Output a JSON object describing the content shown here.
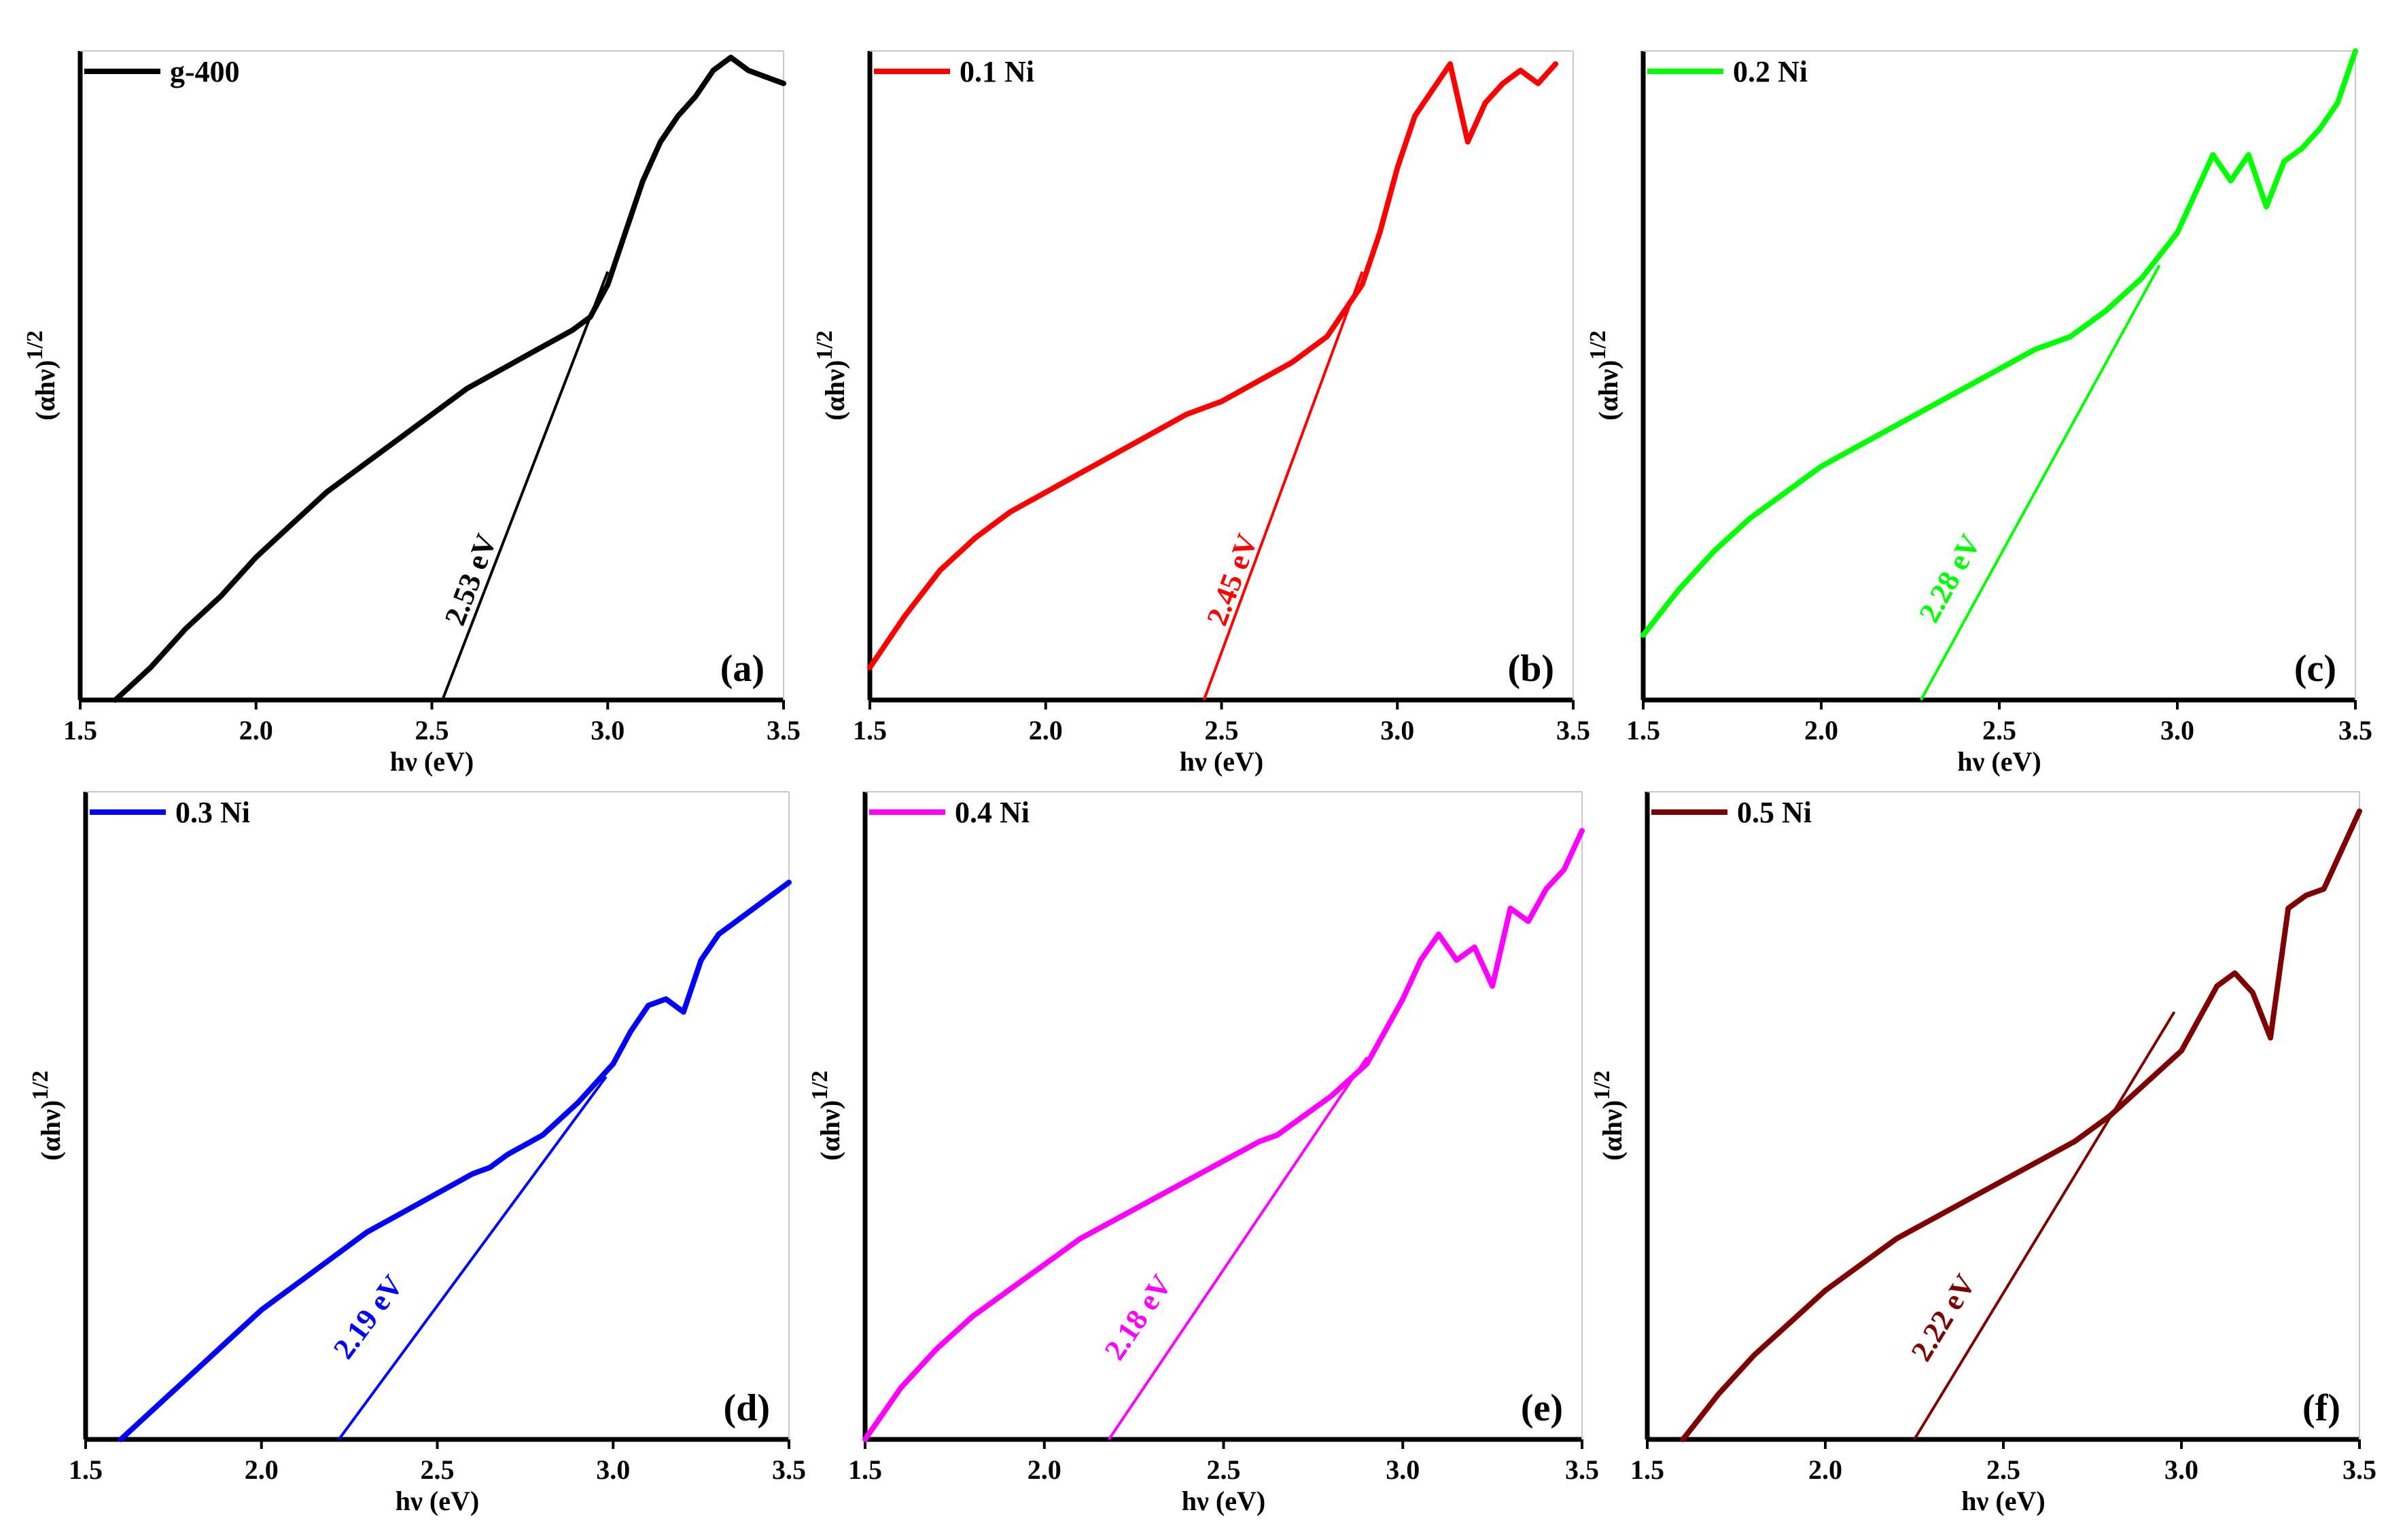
{
  "figure_title": "",
  "chart_data": [
    {
      "type": "line",
      "panel_label": "(a)",
      "legend": "g-400",
      "color": "#000000",
      "xlabel": "hν (eV)",
      "ylabel": "(αhν)",
      "ylabel_sup": "1/2",
      "xlim": [
        1.5,
        3.5
      ],
      "ylim": [
        0,
        1
      ],
      "xticks": [
        "1.5",
        "2.0",
        "2.5",
        "3.0",
        "3.5"
      ],
      "band_gap_eV": 2.53,
      "band_gap_label": "2.53 eV",
      "series": [
        {
          "name": "g-400",
          "x": [
            1.6,
            1.7,
            1.8,
            1.9,
            2.0,
            2.1,
            2.2,
            2.3,
            2.4,
            2.5,
            2.6,
            2.7,
            2.8,
            2.9,
            2.95,
            3.0,
            3.05,
            3.1,
            3.15,
            3.2,
            3.25,
            3.3,
            3.35,
            3.4,
            3.45,
            3.5
          ],
          "y": [
            0.0,
            0.05,
            0.11,
            0.16,
            0.22,
            0.27,
            0.32,
            0.36,
            0.4,
            0.44,
            0.48,
            0.51,
            0.54,
            0.57,
            0.59,
            0.64,
            0.72,
            0.8,
            0.86,
            0.9,
            0.93,
            0.97,
            0.99,
            0.97,
            0.96,
            0.95
          ]
        }
      ],
      "tangent": {
        "x": [
          2.53,
          3.0
        ],
        "y": [
          0.0,
          0.66
        ]
      }
    },
    {
      "type": "line",
      "panel_label": "(b)",
      "legend": "0.1 Ni",
      "color": "#ff0000",
      "xlabel": "hν (eV)",
      "ylabel": "(αhν)",
      "ylabel_sup": "1/2",
      "xlim": [
        1.5,
        3.5
      ],
      "ylim": [
        0,
        1
      ],
      "xticks": [
        "1.5",
        "2.0",
        "2.5",
        "3.0",
        "3.5"
      ],
      "band_gap_eV": 2.45,
      "band_gap_label": "2.45 eV",
      "series": [
        {
          "name": "0.1 Ni",
          "x": [
            1.5,
            1.6,
            1.7,
            1.8,
            1.9,
            2.0,
            2.1,
            2.2,
            2.3,
            2.4,
            2.5,
            2.6,
            2.7,
            2.8,
            2.85,
            2.9,
            2.95,
            3.0,
            3.05,
            3.1,
            3.15,
            3.2,
            3.25,
            3.3,
            3.35,
            3.4,
            3.45
          ],
          "y": [
            0.05,
            0.13,
            0.2,
            0.25,
            0.29,
            0.32,
            0.35,
            0.38,
            0.41,
            0.44,
            0.46,
            0.49,
            0.52,
            0.56,
            0.6,
            0.64,
            0.72,
            0.82,
            0.9,
            0.94,
            0.98,
            0.86,
            0.92,
            0.95,
            0.97,
            0.95,
            0.98
          ]
        }
      ],
      "tangent": {
        "x": [
          2.45,
          2.9
        ],
        "y": [
          0.0,
          0.66
        ]
      }
    },
    {
      "type": "line",
      "panel_label": "(c)",
      "legend": "0.2 Ni",
      "color": "#00ff00",
      "xlabel": "hν (eV)",
      "ylabel": "(αhν)",
      "ylabel_sup": "1/2",
      "xlim": [
        1.5,
        3.5
      ],
      "ylim": [
        0,
        1
      ],
      "xticks": [
        "1.5",
        "2.0",
        "2.5",
        "3.0",
        "3.5"
      ],
      "band_gap_eV": 2.28,
      "band_gap_label": "2.28 eV",
      "series": [
        {
          "name": "0.2 Ni",
          "x": [
            1.5,
            1.6,
            1.7,
            1.8,
            1.9,
            2.0,
            2.1,
            2.2,
            2.3,
            2.4,
            2.5,
            2.6,
            2.7,
            2.8,
            2.9,
            3.0,
            3.05,
            3.1,
            3.15,
            3.2,
            3.25,
            3.3,
            3.35,
            3.4,
            3.45,
            3.5
          ],
          "y": [
            0.1,
            0.17,
            0.23,
            0.28,
            0.32,
            0.36,
            0.39,
            0.42,
            0.45,
            0.48,
            0.51,
            0.54,
            0.56,
            0.6,
            0.65,
            0.72,
            0.78,
            0.84,
            0.8,
            0.84,
            0.76,
            0.83,
            0.85,
            0.88,
            0.92,
            1.0
          ]
        }
      ],
      "tangent": {
        "x": [
          2.28,
          2.95
        ],
        "y": [
          0.0,
          0.67
        ]
      }
    },
    {
      "type": "line",
      "panel_label": "(d)",
      "legend": "0.3 Ni",
      "color": "#0000ff",
      "xlabel": "hν (eV)",
      "ylabel": "(αhν)",
      "ylabel_sup": "1/2",
      "xlim": [
        1.5,
        3.5
      ],
      "ylim": [
        0,
        1
      ],
      "xticks": [
        "1.5",
        "2.0",
        "2.5",
        "3.0",
        "3.5"
      ],
      "band_gap_eV": 2.19,
      "band_gap_label": "2.19 eV",
      "series": [
        {
          "name": "0.3 Ni",
          "x": [
            1.6,
            1.7,
            1.8,
            1.9,
            2.0,
            2.1,
            2.2,
            2.3,
            2.4,
            2.5,
            2.6,
            2.65,
            2.7,
            2.8,
            2.9,
            3.0,
            3.05,
            3.1,
            3.15,
            3.2,
            3.25,
            3.3,
            3.35,
            3.4,
            3.45,
            3.5
          ],
          "y": [
            0.0,
            0.05,
            0.1,
            0.15,
            0.2,
            0.24,
            0.28,
            0.32,
            0.35,
            0.38,
            0.41,
            0.42,
            0.44,
            0.47,
            0.52,
            0.58,
            0.63,
            0.67,
            0.68,
            0.66,
            0.74,
            0.78,
            0.8,
            0.82,
            0.84,
            0.86
          ]
        }
      ],
      "tangent": {
        "x": [
          2.22,
          2.98
        ],
        "y": [
          0.0,
          0.56
        ]
      }
    },
    {
      "type": "line",
      "panel_label": "(e)",
      "legend": "0.4 Ni",
      "color": "#ff00ff",
      "xlabel": "hν (eV)",
      "ylabel": "(αhν)",
      "ylabel_sup": "1/2",
      "xlim": [
        1.5,
        3.5
      ],
      "ylim": [
        0,
        1
      ],
      "xticks": [
        "1.5",
        "2.0",
        "2.5",
        "3.0",
        "3.5"
      ],
      "band_gap_eV": 2.18,
      "band_gap_label": "2.18 eV",
      "series": [
        {
          "name": "0.4 Ni",
          "x": [
            1.5,
            1.6,
            1.7,
            1.8,
            1.9,
            2.0,
            2.1,
            2.2,
            2.3,
            2.4,
            2.5,
            2.6,
            2.65,
            2.7,
            2.8,
            2.9,
            3.0,
            3.05,
            3.1,
            3.15,
            3.2,
            3.25,
            3.3,
            3.35,
            3.4,
            3.45,
            3.5
          ],
          "y": [
            0.0,
            0.08,
            0.14,
            0.19,
            0.23,
            0.27,
            0.31,
            0.34,
            0.37,
            0.4,
            0.43,
            0.46,
            0.47,
            0.49,
            0.53,
            0.58,
            0.68,
            0.74,
            0.78,
            0.74,
            0.76,
            0.7,
            0.82,
            0.8,
            0.85,
            0.88,
            0.94
          ]
        }
      ],
      "tangent": {
        "x": [
          2.18,
          2.9
        ],
        "y": [
          0.0,
          0.59
        ]
      }
    },
    {
      "type": "line",
      "panel_label": "(f)",
      "legend": "0.5 Ni",
      "color": "#7f0000",
      "xlabel": "hν (eV)",
      "ylabel": "(αhν)",
      "ylabel_sup": "1/2",
      "xlim": [
        1.5,
        3.5
      ],
      "ylim": [
        0,
        1
      ],
      "xticks": [
        "1.5",
        "2.0",
        "2.5",
        "3.0",
        "3.5"
      ],
      "band_gap_eV": 2.22,
      "band_gap_label": "2.22 eV",
      "series": [
        {
          "name": "0.5 Ni",
          "x": [
            1.6,
            1.7,
            1.8,
            1.9,
            2.0,
            2.1,
            2.2,
            2.3,
            2.4,
            2.5,
            2.6,
            2.7,
            2.8,
            2.9,
            3.0,
            3.05,
            3.1,
            3.15,
            3.2,
            3.25,
            3.3,
            3.35,
            3.4,
            3.45,
            3.5
          ],
          "y": [
            0.0,
            0.07,
            0.13,
            0.18,
            0.23,
            0.27,
            0.31,
            0.34,
            0.37,
            0.4,
            0.43,
            0.46,
            0.5,
            0.55,
            0.6,
            0.65,
            0.7,
            0.72,
            0.69,
            0.62,
            0.82,
            0.84,
            0.85,
            0.91,
            0.97
          ]
        }
      ],
      "tangent": {
        "x": [
          2.25,
          2.98
        ],
        "y": [
          0.0,
          0.66
        ]
      }
    }
  ]
}
